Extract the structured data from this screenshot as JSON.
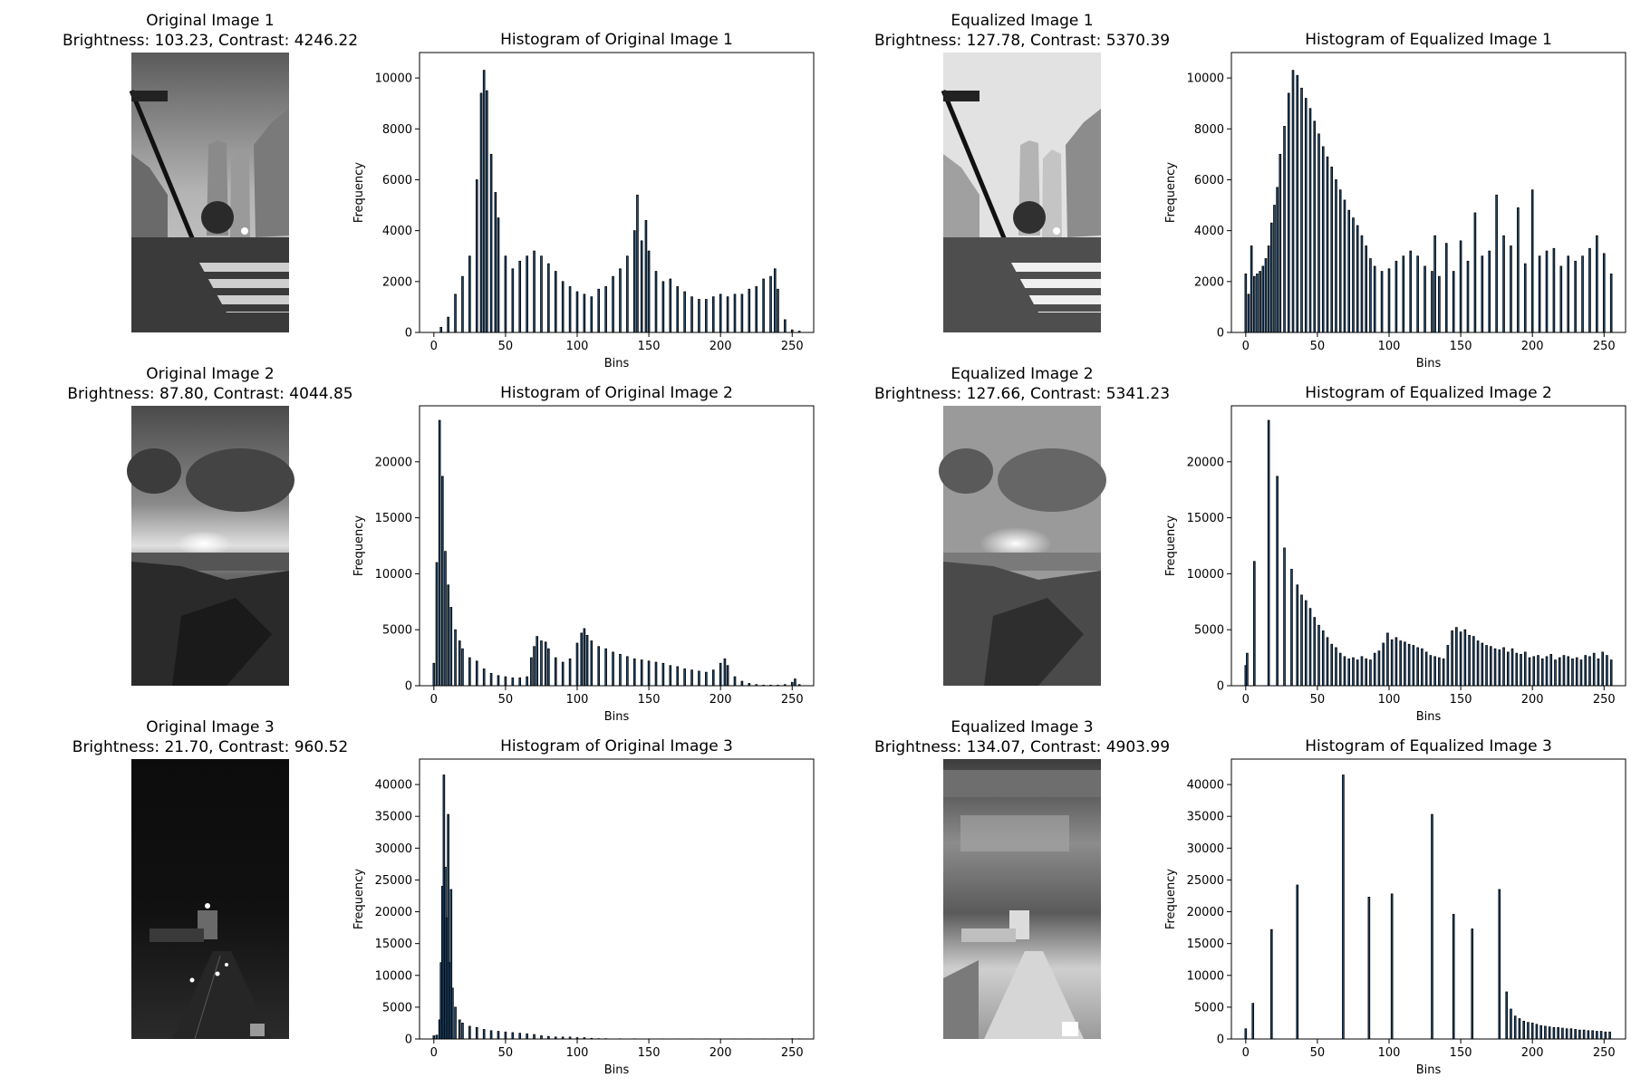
{
  "colors": {
    "bar_fill": "#1f4e79",
    "bar_edge": "#000000"
  },
  "panels": [
    {
      "title": "Original Image 1",
      "stats": "Brightness: 103.23, Contrast: 4246.22",
      "scene": "city-street-crosswalk",
      "tone": "medium"
    },
    {
      "title": "Equalized Image 1",
      "stats": "Brightness: 127.78, Contrast: 5370.39",
      "scene": "city-street-crosswalk",
      "tone": "bright"
    },
    {
      "title": "Original Image 2",
      "stats": "Brightness: 87.80, Contrast: 4044.85",
      "scene": "rocky-coast-sunset",
      "tone": "medium"
    },
    {
      "title": "Equalized Image 2",
      "stats": "Brightness: 127.66, Contrast: 5341.23",
      "scene": "rocky-coast-sunset",
      "tone": "bright"
    },
    {
      "title": "Original Image 3",
      "stats": "Brightness: 21.70, Contrast: 960.52",
      "scene": "highway-at-night",
      "tone": "dark"
    },
    {
      "title": "Equalized Image 3",
      "stats": "Brightness: 134.07, Contrast: 4903.99",
      "scene": "highway-at-night",
      "tone": "equalized"
    }
  ],
  "chart_data": [
    {
      "type": "bar",
      "title": "Histogram of Original Image 1",
      "xlabel": "Bins",
      "ylabel": "Frequency",
      "xlim": [
        -10,
        265
      ],
      "ylim": [
        0,
        11000
      ],
      "xticks": [
        0,
        50,
        100,
        150,
        200,
        250
      ],
      "yticks": [
        0,
        2000,
        4000,
        6000,
        8000,
        10000
      ],
      "series": [
        {
          "x": [
            0,
            5,
            10,
            15,
            20,
            25,
            30,
            33,
            35,
            37,
            40,
            43,
            45,
            50,
            55,
            60,
            65,
            70,
            75,
            80,
            85,
            90,
            95,
            100,
            105,
            110,
            115,
            120,
            125,
            130,
            135,
            140,
            142,
            145,
            148,
            150,
            155,
            160,
            165,
            170,
            175,
            180,
            185,
            190,
            195,
            200,
            205,
            210,
            215,
            220,
            225,
            230,
            235,
            238,
            240,
            245,
            250,
            255
          ],
          "values": [
            0,
            200,
            600,
            1500,
            2200,
            3000,
            6000,
            9400,
            10300,
            9500,
            7000,
            5500,
            4500,
            3000,
            2500,
            2800,
            3000,
            3200,
            3000,
            2700,
            2400,
            2000,
            1800,
            1600,
            1500,
            1400,
            1700,
            1800,
            2200,
            2500,
            3000,
            4000,
            5400,
            3600,
            4400,
            3200,
            2400,
            2000,
            2100,
            1800,
            1600,
            1400,
            1300,
            1300,
            1400,
            1500,
            1400,
            1500,
            1500,
            1700,
            1800,
            2100,
            2200,
            2500,
            1700,
            500,
            100,
            50
          ]
        }
      ]
    },
    {
      "type": "bar",
      "title": "Histogram of Equalized Image 1",
      "xlabel": "Bins",
      "ylabel": "Frequency",
      "xlim": [
        -10,
        265
      ],
      "ylim": [
        0,
        11000
      ],
      "xticks": [
        0,
        50,
        100,
        150,
        200,
        250
      ],
      "yticks": [
        0,
        2000,
        4000,
        6000,
        8000,
        10000
      ],
      "series": [
        {
          "x": [
            0,
            2,
            4,
            6,
            8,
            10,
            12,
            14,
            16,
            18,
            20,
            22,
            24,
            27,
            30,
            33,
            36,
            39,
            42,
            45,
            48,
            51,
            54,
            57,
            60,
            63,
            66,
            69,
            72,
            75,
            78,
            81,
            84,
            87,
            90,
            95,
            100,
            105,
            110,
            115,
            120,
            125,
            130,
            132,
            135,
            140,
            145,
            150,
            155,
            160,
            165,
            170,
            175,
            180,
            185,
            190,
            195,
            200,
            205,
            210,
            215,
            220,
            225,
            230,
            235,
            240,
            245,
            250,
            255
          ],
          "values": [
            2300,
            1500,
            3400,
            2200,
            2300,
            2400,
            2600,
            2900,
            3400,
            4300,
            5000,
            5700,
            7000,
            8100,
            9400,
            10300,
            10100,
            9600,
            9200,
            8800,
            8300,
            7800,
            7300,
            6900,
            6500,
            6000,
            5600,
            5200,
            4800,
            4500,
            4200,
            3800,
            3400,
            2900,
            2600,
            2400,
            2500,
            2800,
            3000,
            3200,
            3000,
            2600,
            2400,
            3800,
            2200,
            3500,
            2400,
            3600,
            2800,
            4700,
            3000,
            3200,
            5400,
            3800,
            3400,
            4900,
            2700,
            5600,
            3000,
            3200,
            3300,
            2600,
            3000,
            2800,
            3000,
            3300,
            3800,
            3100,
            2300
          ]
        }
      ]
    },
    {
      "type": "bar",
      "title": "Histogram of Original Image 2",
      "xlabel": "Bins",
      "ylabel": "Frequency",
      "xlim": [
        -10,
        265
      ],
      "ylim": [
        0,
        25000
      ],
      "xticks": [
        0,
        50,
        100,
        150,
        200,
        250
      ],
      "yticks": [
        0,
        5000,
        10000,
        15000,
        20000
      ],
      "series": [
        {
          "x": [
            0,
            2,
            4,
            6,
            8,
            10,
            12,
            15,
            18,
            20,
            25,
            30,
            35,
            40,
            45,
            50,
            55,
            60,
            65,
            68,
            70,
            72,
            75,
            78,
            80,
            85,
            90,
            95,
            100,
            103,
            105,
            107,
            110,
            115,
            120,
            125,
            130,
            135,
            140,
            145,
            150,
            155,
            160,
            165,
            170,
            175,
            180,
            185,
            190,
            195,
            200,
            203,
            205,
            210,
            215,
            220,
            225,
            230,
            235,
            240,
            245,
            250,
            252,
            255
          ],
          "values": [
            2000,
            11000,
            23700,
            18700,
            12000,
            9000,
            7000,
            5000,
            4000,
            3300,
            2500,
            2200,
            1500,
            1100,
            900,
            800,
            700,
            700,
            800,
            2500,
            3500,
            4400,
            4000,
            3900,
            3300,
            2500,
            2100,
            2400,
            3800,
            4700,
            5100,
            4500,
            4000,
            3500,
            3300,
            3000,
            2800,
            2600,
            2400,
            2300,
            2200,
            2100,
            2000,
            1800,
            1700,
            1500,
            1400,
            1300,
            1200,
            1400,
            2000,
            2400,
            1800,
            800,
            400,
            200,
            100,
            50,
            50,
            50,
            100,
            300,
            600,
            100
          ]
        }
      ]
    },
    {
      "type": "bar",
      "title": "Histogram of Equalized Image 2",
      "xlabel": "Bins",
      "ylabel": "Frequency",
      "xlim": [
        -10,
        265
      ],
      "ylim": [
        0,
        25000
      ],
      "xticks": [
        0,
        50,
        100,
        150,
        200,
        250
      ],
      "yticks": [
        0,
        5000,
        10000,
        15000,
        20000
      ],
      "series": [
        {
          "x": [
            0,
            1,
            6,
            16,
            22,
            27,
            32,
            36,
            39,
            42,
            45,
            48,
            51,
            54,
            57,
            60,
            63,
            66,
            69,
            72,
            75,
            78,
            81,
            84,
            87,
            90,
            93,
            96,
            99,
            102,
            105,
            108,
            111,
            114,
            117,
            120,
            123,
            126,
            129,
            132,
            135,
            138,
            141,
            144,
            147,
            150,
            153,
            156,
            159,
            162,
            165,
            168,
            171,
            174,
            177,
            180,
            183,
            186,
            189,
            192,
            195,
            198,
            201,
            204,
            207,
            210,
            213,
            216,
            219,
            222,
            225,
            228,
            231,
            234,
            237,
            240,
            243,
            246,
            249,
            252,
            255
          ],
          "values": [
            1800,
            2900,
            11100,
            23700,
            18700,
            12300,
            10400,
            9000,
            8100,
            7600,
            6900,
            6100,
            5400,
            4900,
            4300,
            3700,
            3400,
            2900,
            2600,
            2400,
            2500,
            2300,
            2600,
            2400,
            2300,
            2900,
            3100,
            3800,
            4700,
            4100,
            4300,
            4000,
            3900,
            3700,
            3600,
            3400,
            3300,
            3000,
            2700,
            2600,
            2500,
            2400,
            3600,
            4900,
            5200,
            4800,
            5000,
            4500,
            4400,
            4000,
            3800,
            3600,
            3500,
            3300,
            3200,
            3400,
            3000,
            3300,
            2900,
            2800,
            3000,
            2500,
            2600,
            2700,
            2400,
            2600,
            2800,
            2300,
            2500,
            2700,
            2600,
            2400,
            2500,
            2300,
            2700,
            2600,
            2900,
            2400,
            3000,
            2700,
            2300
          ]
        }
      ]
    },
    {
      "type": "bar",
      "title": "Histogram of Original Image 3",
      "xlabel": "Bins",
      "ylabel": "Frequency",
      "xlim": [
        -10,
        265
      ],
      "ylim": [
        0,
        44000
      ],
      "xticks": [
        0,
        50,
        100,
        150,
        200,
        250
      ],
      "yticks": [
        0,
        5000,
        10000,
        15000,
        20000,
        25000,
        30000,
        35000,
        40000
      ],
      "series": [
        {
          "x": [
            0,
            2,
            4,
            5,
            6,
            7,
            8,
            9,
            10,
            11,
            12,
            13,
            15,
            18,
            20,
            25,
            30,
            35,
            40,
            45,
            50,
            55,
            60,
            65,
            70,
            75,
            80,
            85,
            90,
            95,
            100,
            105,
            110,
            115,
            120,
            130,
            140,
            150,
            160,
            170,
            180,
            190,
            200,
            210,
            220,
            230,
            240,
            250,
            255
          ],
          "values": [
            500,
            600,
            3000,
            12000,
            24000,
            41500,
            27000,
            19000,
            35300,
            12000,
            23500,
            8000,
            5000,
            3000,
            2500,
            2000,
            1800,
            1500,
            1300,
            1200,
            1100,
            1000,
            900,
            800,
            700,
            500,
            400,
            300,
            300,
            300,
            200,
            200,
            100,
            50,
            50,
            30,
            30,
            20,
            20,
            20,
            20,
            20,
            20,
            20,
            20,
            20,
            20,
            50,
            30
          ]
        }
      ]
    },
    {
      "type": "bar",
      "title": "Histogram of Equalized Image 3",
      "xlabel": "Bins",
      "ylabel": "Frequency",
      "xlim": [
        -10,
        265
      ],
      "ylim": [
        0,
        44000
      ],
      "xticks": [
        0,
        50,
        100,
        150,
        200,
        250
      ],
      "yticks": [
        0,
        5000,
        10000,
        15000,
        20000,
        25000,
        30000,
        35000,
        40000
      ],
      "series": [
        {
          "x": [
            0,
            5,
            18,
            36,
            68,
            86,
            102,
            130,
            145,
            158,
            177,
            182,
            185,
            188,
            191,
            194,
            197,
            200,
            203,
            206,
            209,
            212,
            215,
            218,
            221,
            224,
            227,
            230,
            233,
            236,
            239,
            242,
            245,
            248,
            251,
            254
          ],
          "values": [
            1600,
            5600,
            17200,
            24200,
            41500,
            22300,
            22800,
            35300,
            19600,
            17300,
            23500,
            7400,
            4700,
            3600,
            3200,
            2800,
            2600,
            2500,
            2300,
            2100,
            2000,
            1900,
            1800,
            1800,
            1700,
            1600,
            1600,
            1500,
            1400,
            1400,
            1300,
            1300,
            1200,
            1200,
            1100,
            1100
          ]
        }
      ]
    }
  ]
}
